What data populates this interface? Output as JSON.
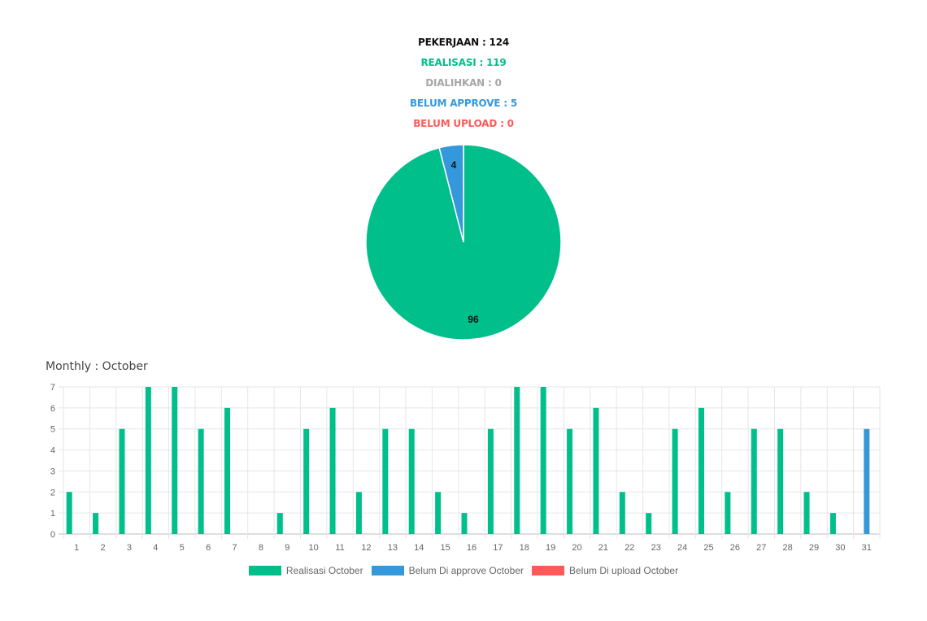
{
  "summary": {
    "pekerjaan": "PEKERJAAN : 124",
    "realisasi": "REALISASI : 119",
    "dialihkan": "DIALIHKAN : 0",
    "belum_approve": "BELUM APPROVE : 5",
    "belum_upload": "BELUM UPLOAD : 0"
  },
  "colors": {
    "realisasi": "#00bf8a",
    "belum_approve": "#3498db",
    "belum_upload": "#ff5a5a",
    "dialihkan": "#a6a6a6",
    "pekerjaan": "#111111"
  },
  "monthly_title": "Monthly : October",
  "chart_data": [
    {
      "type": "pie",
      "values": [
        96,
        4
      ],
      "labels": [
        "96",
        "4"
      ],
      "colors": [
        "#00bf8a",
        "#3498db"
      ]
    },
    {
      "type": "bar",
      "categories": [
        "1",
        "2",
        "3",
        "4",
        "5",
        "6",
        "7",
        "8",
        "9",
        "10",
        "11",
        "12",
        "13",
        "14",
        "15",
        "16",
        "17",
        "18",
        "19",
        "20",
        "21",
        "22",
        "23",
        "24",
        "25",
        "26",
        "27",
        "28",
        "29",
        "30",
        "31"
      ],
      "series": [
        {
          "name": "Realisasi October",
          "color": "#00bf8a",
          "values": [
            2,
            1,
            5,
            7,
            7,
            5,
            6,
            0,
            1,
            5,
            6,
            2,
            5,
            5,
            2,
            1,
            5,
            7,
            7,
            5,
            6,
            2,
            1,
            5,
            6,
            2,
            5,
            5,
            2,
            1,
            0
          ]
        },
        {
          "name": "Belum Di approve October",
          "color": "#3498db",
          "values": [
            0,
            0,
            0,
            0,
            0,
            0,
            0,
            0,
            0,
            0,
            0,
            0,
            0,
            0,
            0,
            0,
            0,
            0,
            0,
            0,
            0,
            0,
            0,
            0,
            0,
            0,
            0,
            0,
            0,
            0,
            5
          ]
        },
        {
          "name": "Belum Di upload October",
          "color": "#ff5a5a",
          "values": [
            0,
            0,
            0,
            0,
            0,
            0,
            0,
            0,
            0,
            0,
            0,
            0,
            0,
            0,
            0,
            0,
            0,
            0,
            0,
            0,
            0,
            0,
            0,
            0,
            0,
            0,
            0,
            0,
            0,
            0,
            0
          ]
        }
      ],
      "ylim": [
        0,
        7
      ],
      "yticks": [
        "0",
        "1",
        "2",
        "3",
        "4",
        "5",
        "6",
        "7"
      ],
      "grid": true,
      "legend_position": "bottom"
    }
  ]
}
